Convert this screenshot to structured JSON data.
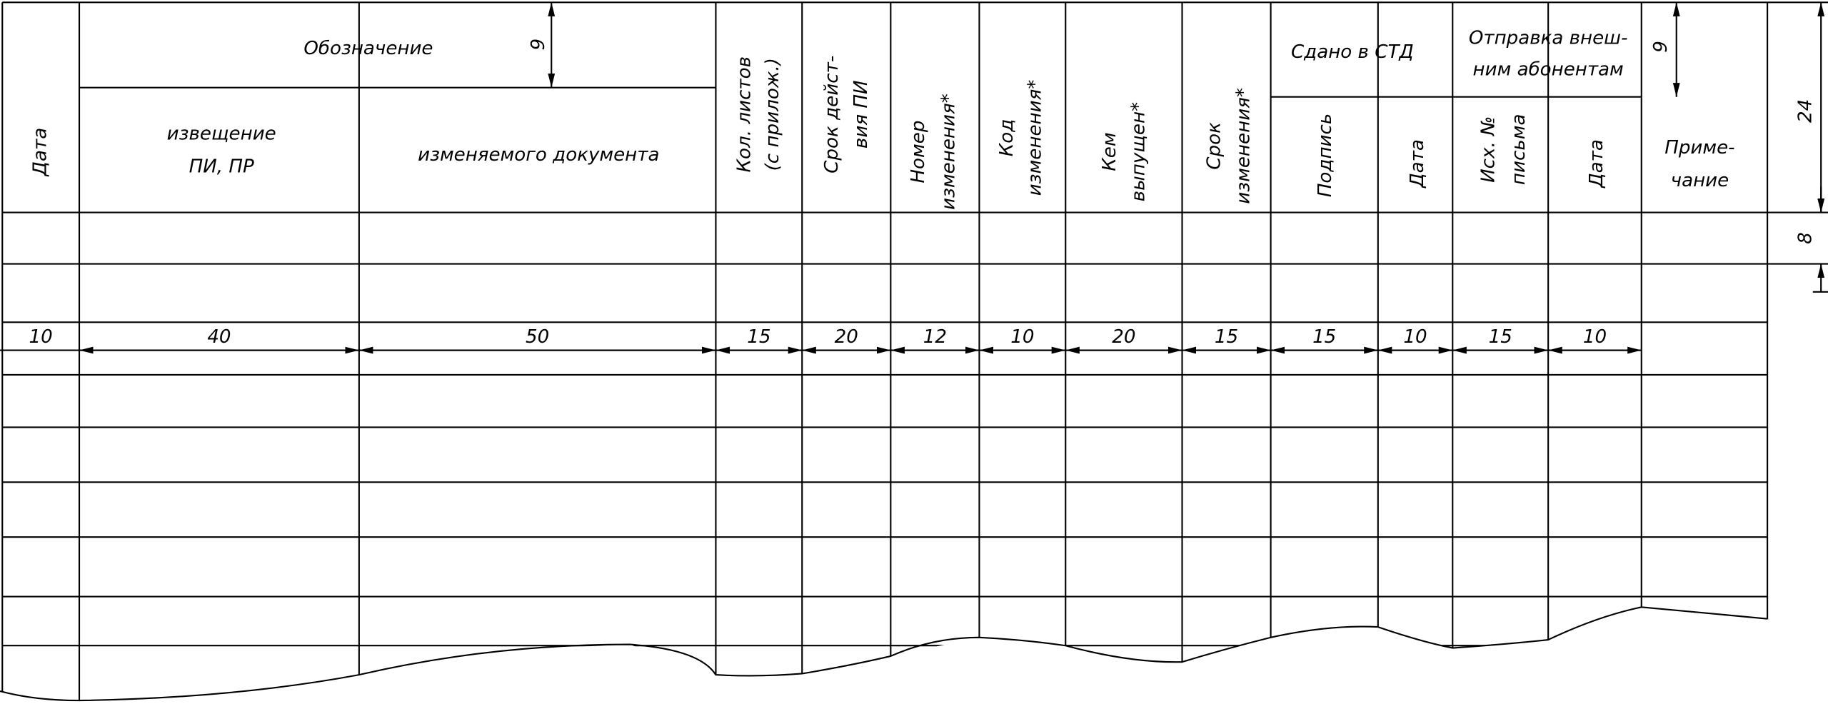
{
  "table": {
    "headers": {
      "date": "Дата",
      "designation": "Обозначение",
      "notice": [
        "извещение",
        "ПИ, ПР"
      ],
      "changed_document": "изменяемого документа",
      "sheets": [
        "Кол. листов",
        "(с прилож.)"
      ],
      "validity": [
        "Срок дейст-",
        "вия ПИ"
      ],
      "change_number": [
        "Номер",
        "изменения*"
      ],
      "change_code": [
        "Код",
        "изменения*"
      ],
      "issued_by": [
        "Кем",
        "выпущен*"
      ],
      "change_term": [
        "Срок",
        "изменения*"
      ],
      "submitted": "Сдано в СТД",
      "signature": "Подпись",
      "submitted_date": "Дата",
      "external": [
        "Отправка внеш-",
        "ним абонентам"
      ],
      "letter": [
        "Исх. №",
        "письма"
      ],
      "external_date": "Дата",
      "note": [
        "Приме-",
        "чание"
      ]
    },
    "dimensions": {
      "column_widths": [
        10,
        40,
        50,
        15,
        20,
        12,
        10,
        20,
        15,
        15,
        10,
        15,
        10
      ],
      "designation_height": 9,
      "external_height": 9,
      "header_height": 24,
      "row_height": 8
    }
  }
}
